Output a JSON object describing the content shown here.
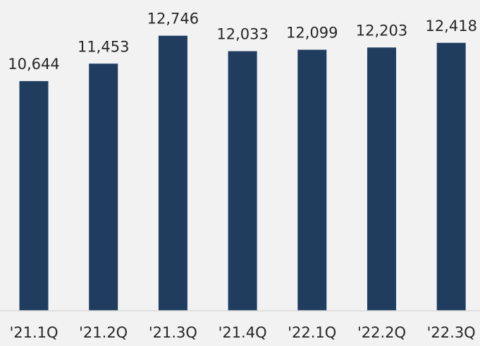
{
  "chart_data": {
    "type": "bar",
    "title": "",
    "xlabel": "",
    "ylabel": "",
    "categories": [
      "'21.1Q",
      "'21.2Q",
      "'21.3Q",
      "'21.4Q",
      "'22.1Q",
      "'22.2Q",
      "'22.3Q"
    ],
    "values": [
      10644,
      11453,
      12746,
      12033,
      12099,
      12203,
      12418
    ],
    "value_labels": [
      "10,644",
      "11,453",
      "12,746",
      "12,033",
      "12,099",
      "12,203",
      "12,418"
    ],
    "ylim": [
      0,
      13750
    ],
    "grid": false,
    "legend": "none",
    "colors": {
      "bar": "#203d5f",
      "background": "#f2f2f2",
      "text": "#262626",
      "axis": "#d9d9d9"
    }
  }
}
